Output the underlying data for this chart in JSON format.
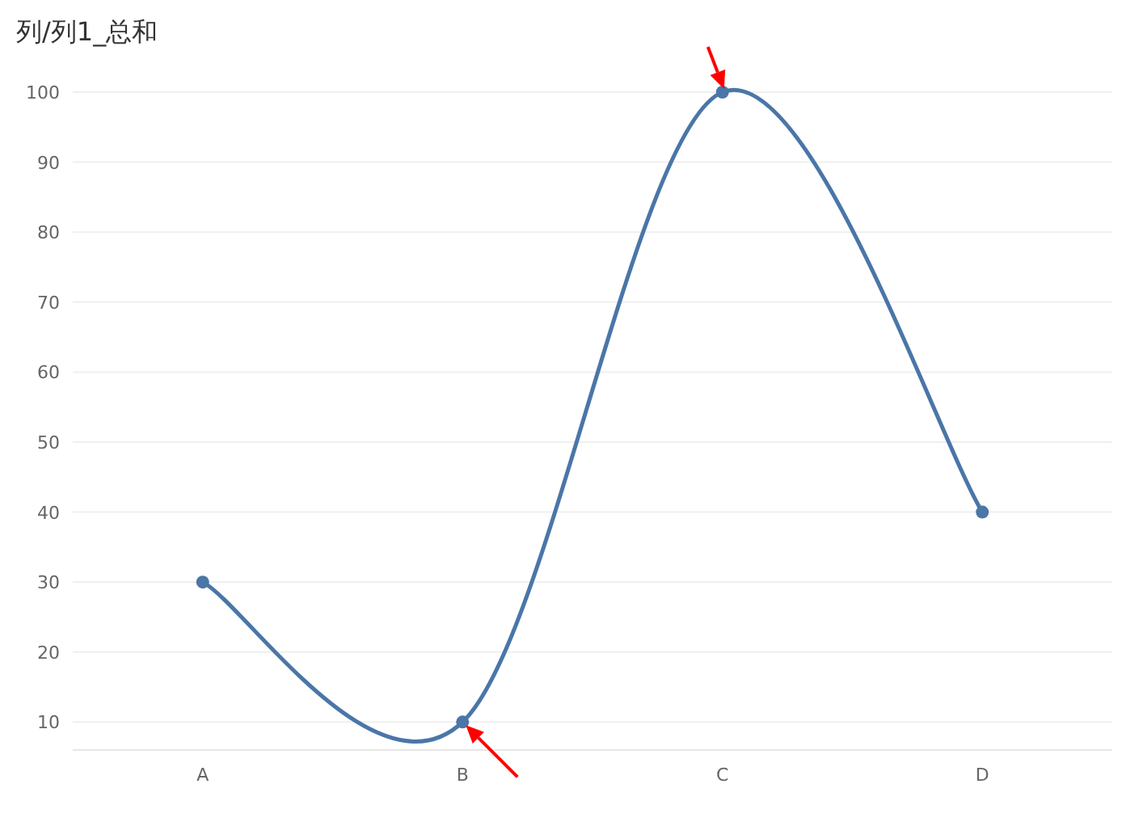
{
  "chart_data": {
    "type": "line",
    "title": "列/列1_总和",
    "categories": [
      "A",
      "B",
      "C",
      "D"
    ],
    "series": [
      {
        "color": "#4a76a8",
        "values": [
          30,
          10,
          100,
          40
        ]
      }
    ],
    "ylim": [
      6,
      100
    ],
    "yticks": [
      10,
      20,
      30,
      40,
      50,
      60,
      70,
      80,
      90,
      100
    ],
    "grid": "y",
    "marker": "circle",
    "line_style": "solid"
  }
}
